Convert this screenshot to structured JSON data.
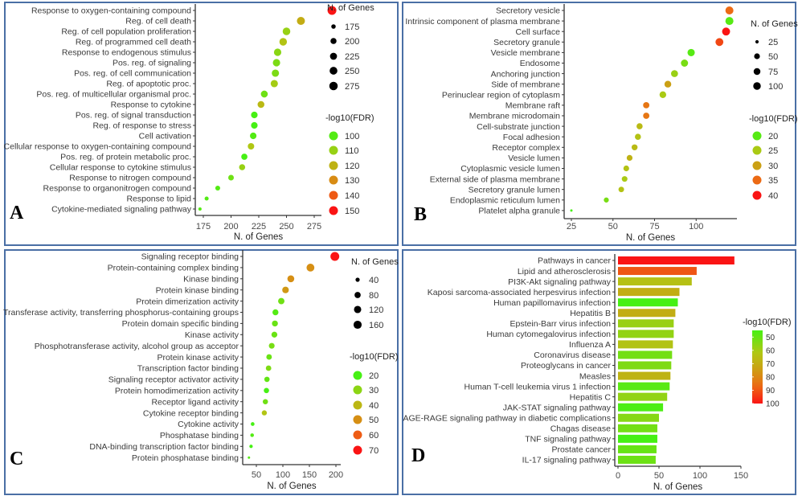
{
  "chart_data": [
    {
      "id": "A",
      "type": "scatter",
      "panel_label": "A",
      "title": "",
      "xlabel": "N. of Genes",
      "ylabel": "",
      "xlim": [
        170,
        295
      ],
      "xticks": [
        175,
        200,
        225,
        250,
        275
      ],
      "size_legend": {
        "title": "N. of Genes",
        "values": [
          175,
          200,
          225,
          250,
          275
        ]
      },
      "color_legend": {
        "title": "-log10(FDR)",
        "values": [
          100,
          110,
          120,
          130,
          140,
          150
        ]
      },
      "categories": [
        "Response to oxygen-containing compound",
        "Reg. of cell death",
        "Reg. of cell population proliferation",
        "Reg. of programmed cell death",
        "Response to endogenous stimulus",
        "Pos. reg. of signaling",
        "Pos. reg. of cell communication",
        "Reg. of apoptotic proc.",
        "Pos. reg. of multicellular organismal proc.",
        "Response to cytokine",
        "Pos. reg. of signal transduction",
        "Reg. of response to stress",
        "Cell activation",
        "Cellular response to oxygen-containing compound",
        "Pos. reg. of protein metabolic proc.",
        "Cellular response to cytokine stimulus",
        "Response to nitrogen compound",
        "Response to organonitrogen compound",
        "Response to lipid",
        "Cytokine-mediated signaling pathway"
      ],
      "genes": [
        291,
        263,
        250,
        247,
        242,
        241,
        240,
        239,
        230,
        227,
        221,
        221,
        220,
        218,
        212,
        210,
        200,
        188,
        178,
        172
      ],
      "neg_log10_fdr": [
        150,
        122,
        110,
        115,
        108,
        106,
        106,
        112,
        104,
        118,
        98,
        98,
        100,
        114,
        96,
        110,
        104,
        100,
        100,
        100
      ]
    },
    {
      "id": "B",
      "type": "scatter",
      "panel_label": "B",
      "title": "",
      "xlabel": "N. of Genes",
      "ylabel": "",
      "xlim": [
        22,
        125
      ],
      "xticks": [
        25,
        50,
        75,
        100
      ],
      "size_legend": {
        "title": "N. of Genes",
        "values": [
          25,
          50,
          75,
          100
        ]
      },
      "color_legend": {
        "title": "-log10(FDR)",
        "values": [
          20,
          25,
          30,
          35,
          40
        ]
      },
      "categories": [
        "Secretory vesicle",
        "Intrinsic component of plasma membrane",
        "Cell surface",
        "Secretory granule",
        "Vesicle membrane",
        "Endosome",
        "Anchoring junction",
        "Side of membrane",
        "Perinuclear region of cytoplasm",
        "Membrane raft",
        "Membrane microdomain",
        "Cell-substrate junction",
        "Focal adhesion",
        "Receptor complex",
        "Vesicle lumen",
        "Cytoplasmic vesicle lumen",
        "External side of plasma membrane",
        "Secretory granule lumen",
        "Endoplasmic reticulum lumen",
        "Platelet alpha granule"
      ],
      "genes": [
        120,
        120,
        118,
        114,
        97,
        93,
        87,
        83,
        80,
        70,
        70,
        66,
        65,
        63,
        60,
        58,
        57,
        55,
        46,
        25
      ],
      "neg_log10_fdr": [
        35,
        20,
        40,
        37,
        20,
        22,
        24,
        30,
        25,
        34,
        34,
        27,
        26,
        27,
        28,
        26,
        25,
        26,
        22,
        19
      ]
    },
    {
      "id": "C",
      "type": "scatter",
      "panel_label": "C",
      "title": "",
      "xlabel": "N. of Genes",
      "ylabel": "",
      "xlim": [
        25,
        205
      ],
      "xticks": [
        50,
        100,
        150,
        200
      ],
      "size_legend": {
        "title": "N. of Genes",
        "values": [
          40,
          80,
          120,
          160
        ]
      },
      "color_legend": {
        "title": "-log10(FDR)",
        "values": [
          20,
          30,
          40,
          50,
          60,
          70
        ]
      },
      "categories": [
        "Signaling receptor binding",
        "Protein-containing complex binding",
        "Kinase binding",
        "Protein kinase binding",
        "Protein dimerization activity",
        "Transferase activity, transferring phosphorus-containing groups",
        "Protein domain specific binding",
        "Kinase activity",
        "Phosphotransferase activity, alcohol group as acceptor",
        "Protein kinase activity",
        "Transcription factor binding",
        "Signaling receptor activator activity",
        "Protein homodimerization activity",
        "Receptor ligand activity",
        "Cytokine receptor binding",
        "Cytokine activity",
        "Phosphatase binding",
        "DNA-binding transcription factor binding",
        "Protein phosphatase binding"
      ],
      "genes": [
        198,
        152,
        115,
        105,
        97,
        86,
        85,
        84,
        79,
        74,
        73,
        70,
        69,
        67,
        65,
        43,
        42,
        40,
        36
      ],
      "neg_log10_fdr": [
        70,
        50,
        50,
        48,
        26,
        22,
        25,
        25,
        27,
        25,
        28,
        24,
        20,
        26,
        36,
        20,
        22,
        20,
        22
      ]
    },
    {
      "id": "D",
      "type": "bar",
      "orientation": "horizontal",
      "panel_label": "D",
      "title": "",
      "xlabel": "N. of Genes",
      "ylabel": "",
      "xlim": [
        0,
        150
      ],
      "xticks": [
        0,
        50,
        100,
        150
      ],
      "color_legend": {
        "title": "-log10(FDR)",
        "values": [
          50,
          60,
          70,
          80,
          90,
          100
        ],
        "range": [
          45,
          100
        ]
      },
      "categories": [
        "Pathways in cancer",
        "Lipid and atherosclerosis",
        "PI3K-Akt signaling pathway",
        "Kaposi sarcoma-associated herpesvirus infection",
        "Human papillomavirus infection",
        "Hepatitis B",
        "Epstein-Barr virus infection",
        "Human cytomegalovirus infection",
        "Influenza A",
        "Coronavirus disease",
        "Proteoglycans in cancer",
        "Measles",
        "Human T-cell leukemia virus 1 infection",
        "Hepatitis C",
        "JAK-STAT signaling pathway",
        "AGE-RAGE signaling pathway in diabetic complications",
        "Chagas disease",
        "TNF signaling pathway",
        "Prostate cancer",
        "IL-17 signaling pathway"
      ],
      "values": [
        142,
        96,
        90,
        75,
        73,
        70,
        68,
        68,
        67,
        66,
        65,
        64,
        63,
        60,
        55,
        50,
        48,
        48,
        47,
        46
      ],
      "neg_log10_fdr": [
        100,
        90,
        64,
        70,
        45,
        70,
        58,
        57,
        63,
        52,
        54,
        68,
        48,
        57,
        46,
        55,
        52,
        45,
        50,
        51
      ]
    }
  ]
}
